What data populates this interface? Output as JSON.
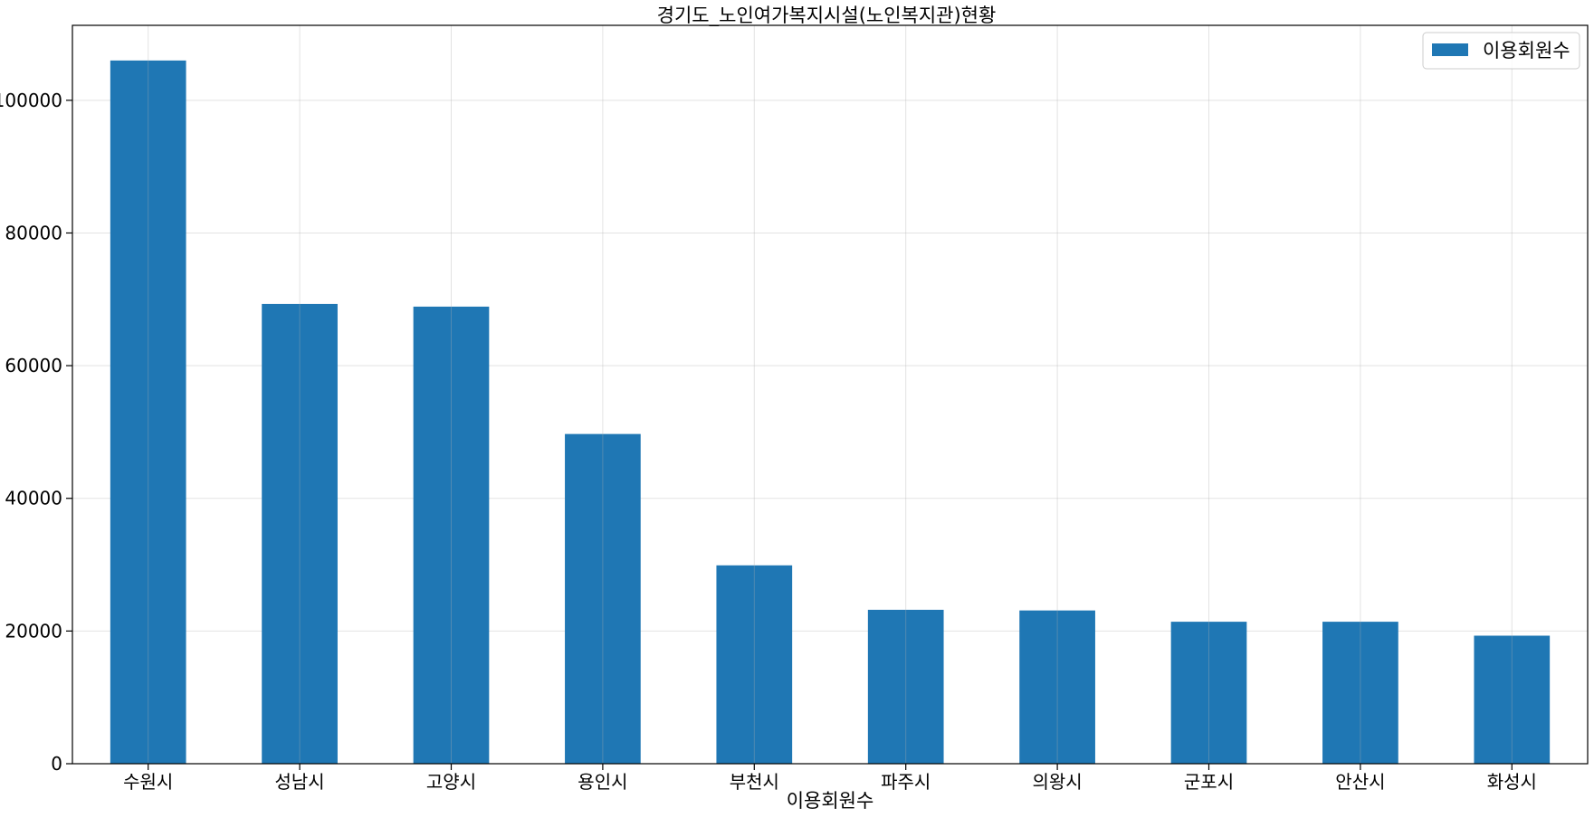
{
  "chart_data": {
    "type": "bar",
    "title": "경기도_노인여가복지시설(노인복지관)현황",
    "xlabel": "이용회원수",
    "ylabel": "",
    "categories": [
      "수원시",
      "성남시",
      "고양시",
      "용인시",
      "부천시",
      "파주시",
      "의왕시",
      "군포시",
      "안산시",
      "화성시"
    ],
    "series": [
      {
        "name": "이용회원수",
        "color": "#1f77b4",
        "values": [
          106000,
          69300,
          68900,
          49700,
          29900,
          23200,
          23100,
          21400,
          21400,
          19300
        ]
      }
    ],
    "ylim": [
      0,
      111300
    ],
    "yticks": [
      0,
      20000,
      40000,
      60000,
      80000,
      100000
    ],
    "ytick_labels": [
      "0",
      "20000",
      "40000",
      "60000",
      "80000",
      "100000"
    ],
    "grid": true,
    "legend_position": "top-right"
  }
}
